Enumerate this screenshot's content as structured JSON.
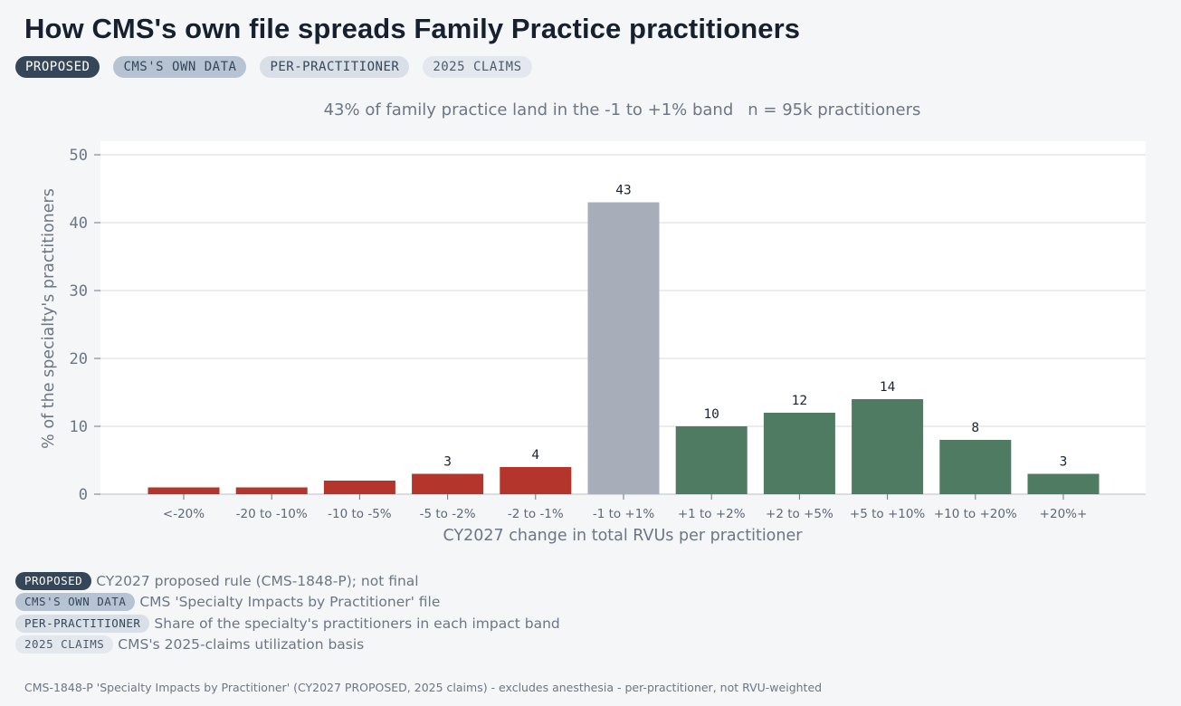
{
  "title": "How CMS's own file spreads Family Practice practitioners",
  "tags": [
    "PROPOSED",
    "CMS'S OWN DATA",
    "PER-PRACTITIONER",
    "2025 CLAIMS"
  ],
  "subtitle": {
    "main": "43% of family practice land in the -1 to +1% band",
    "n": "n = 95k practitioners"
  },
  "colors": {
    "negative": "#b3352b",
    "neutral": "#a7aeba",
    "positive": "#4f7b62",
    "plot_bg": "#ffffff",
    "grid": "#e3e6ea"
  },
  "chart_data": {
    "type": "bar",
    "categories": [
      "<-20%",
      "-20 to -10%",
      "-10 to -5%",
      "-5 to -2%",
      "-2 to -1%",
      "-1 to +1%",
      "+1 to +2%",
      "+2 to +5%",
      "+5 to +10%",
      "+10 to +20%",
      "+20%+"
    ],
    "values": [
      1,
      1,
      2,
      3,
      4,
      43,
      10,
      12,
      14,
      8,
      3
    ],
    "data_labels": [
      "",
      "",
      "",
      "3",
      "4",
      "43",
      "10",
      "12",
      "14",
      "8",
      "3"
    ],
    "bar_colors": [
      "negative",
      "negative",
      "negative",
      "negative",
      "negative",
      "neutral",
      "positive",
      "positive",
      "positive",
      "positive",
      "positive"
    ],
    "xlabel": "CY2027 change in total RVUs per practitioner",
    "ylabel": "% of the specialty's practitioners",
    "ylim": [
      0,
      52
    ],
    "yticks": [
      0,
      10,
      20,
      30,
      40,
      50
    ],
    "grid": true
  },
  "legend": [
    {
      "tag": "PROPOSED",
      "text": "CY2027 proposed rule (CMS-1848-P); not final"
    },
    {
      "tag": "CMS'S OWN DATA",
      "text": "CMS 'Specialty Impacts by Practitioner' file"
    },
    {
      "tag": "PER-PRACTITIONER",
      "text": "Share of the specialty's practitioners in each impact band"
    },
    {
      "tag": "2025 CLAIMS",
      "text": "CMS's 2025-claims utilization basis"
    }
  ],
  "footer": "CMS-1848-P 'Specialty Impacts by Practitioner' (CY2027 PROPOSED, 2025 claims) - excludes anesthesia - per-practitioner, not RVU-weighted"
}
